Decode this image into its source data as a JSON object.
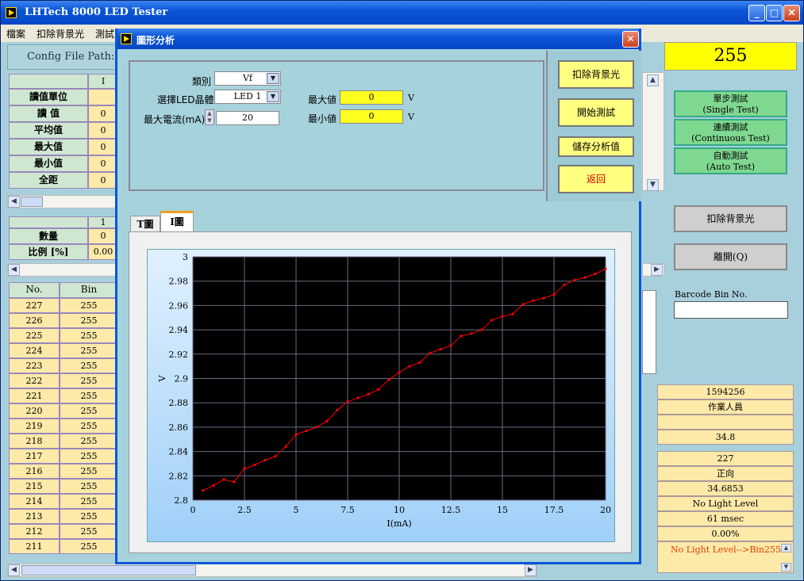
{
  "main": {
    "title": "LHTech 8000 LED Tester",
    "menu": [
      "檔案",
      "扣除背景光",
      "測試"
    ],
    "config_label": "Config File Path:",
    "counter": "255"
  },
  "left_table": {
    "col2_header": "I",
    "rows": [
      {
        "label": "讀值單位",
        "value": ""
      },
      {
        "label": "讀  值",
        "value": "0"
      },
      {
        "label": "平均值",
        "value": "0"
      },
      {
        "label": "最大值",
        "value": "0"
      },
      {
        "label": "最小值",
        "value": "0"
      },
      {
        "label": "全距",
        "value": "0"
      }
    ]
  },
  "count_table": {
    "col_header": "1",
    "rows": [
      {
        "label": "數量",
        "value": "0"
      },
      {
        "label": "比例 [%]",
        "value": "0.00"
      }
    ]
  },
  "no_bin_table": {
    "headers": [
      "No.",
      "Bin"
    ],
    "rows": [
      [
        "227",
        "255"
      ],
      [
        "226",
        "255"
      ],
      [
        "225",
        "255"
      ],
      [
        "224",
        "255"
      ],
      [
        "223",
        "255"
      ],
      [
        "222",
        "255"
      ],
      [
        "221",
        "255"
      ],
      [
        "220",
        "255"
      ],
      [
        "219",
        "255"
      ],
      [
        "218",
        "255"
      ],
      [
        "217",
        "255"
      ],
      [
        "216",
        "255"
      ],
      [
        "215",
        "255"
      ],
      [
        "214",
        "255"
      ],
      [
        "213",
        "255"
      ],
      [
        "212",
        "255"
      ],
      [
        "211",
        "255"
      ]
    ]
  },
  "right_panel": {
    "single_test": "單步測試",
    "single_test_en": "(Single Test)",
    "continuous_test": "連續測試",
    "continuous_test_en": "(Continuous Test)",
    "auto_test": "自動測試",
    "auto_test_en": "(Auto Test)",
    "subtract_bg": "扣除背景光",
    "exit": "離開(Q)",
    "barcode_label": "Barcode Bin No.",
    "barcode_value": "",
    "info1": [
      "1594256",
      "作業人員",
      "",
      "34.8"
    ],
    "info2": [
      "227",
      "正向",
      "34.6853",
      "No Light Level",
      "61  msec",
      "0.00%"
    ],
    "message": "No Light Level-->Bin255"
  },
  "dialog": {
    "title": "圖形分析",
    "category_label": "類別",
    "category_value": "Vf",
    "led_label": "選擇LED晶體",
    "led_value": "LED 1",
    "current_label": "最大電流(mA)",
    "current_value": "20",
    "max_label": "最大値",
    "max_value": "0",
    "max_unit": "V",
    "min_label": "最小値",
    "min_value": "0",
    "min_unit": "V",
    "btn_subtract": "扣除背景光",
    "btn_start": "開始測試",
    "btn_save": "儲存分析值",
    "btn_back": "返回",
    "tab_t": "T圖",
    "tab_i": "I圖"
  },
  "colors": {
    "accent_yellow": "#ffff20",
    "plot_bg": "#000000",
    "trace": "#ff0000",
    "back_text": "#d00000"
  },
  "chart_data": {
    "type": "line",
    "xlabel": "I(mA)",
    "ylabel": "V",
    "xlim": [
      0,
      20
    ],
    "ylim": [
      2.8,
      3
    ],
    "xticks": [
      "0",
      "2.5",
      "5",
      "7.5",
      "10",
      "12.5",
      "15",
      "17.5",
      "20"
    ],
    "yticks": [
      "2.8",
      "2.82",
      "2.84",
      "2.86",
      "2.88",
      "2.9",
      "2.92",
      "2.94",
      "2.96",
      "2.98",
      "3"
    ],
    "grid": true,
    "x": [
      0.5,
      1,
      1.5,
      2,
      2.5,
      3,
      3.5,
      4,
      4.5,
      5,
      5.5,
      6,
      6.5,
      7,
      7.5,
      8,
      8.5,
      9,
      9.5,
      10,
      10.5,
      11,
      11.5,
      12,
      12.5,
      13,
      13.5,
      14,
      14.5,
      15,
      15.5,
      16,
      16.5,
      17,
      17.5,
      18,
      18.5,
      19,
      19.5,
      20
    ],
    "y": [
      2.808,
      2.812,
      2.817,
      2.815,
      2.826,
      2.829,
      2.833,
      2.836,
      2.844,
      2.854,
      2.857,
      2.86,
      2.865,
      2.874,
      2.881,
      2.884,
      2.887,
      2.891,
      2.899,
      2.905,
      2.91,
      2.913,
      2.921,
      2.924,
      2.927,
      2.935,
      2.937,
      2.94,
      2.948,
      2.951,
      2.953,
      2.961,
      2.964,
      2.966,
      2.969,
      2.977,
      2.981,
      2.983,
      2.986,
      2.99
    ]
  }
}
